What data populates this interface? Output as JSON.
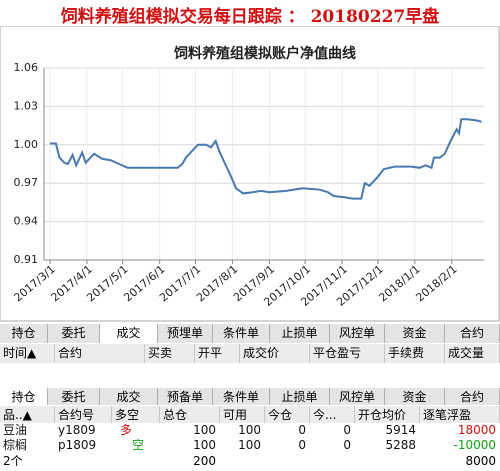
{
  "page_title": "饲料养殖组模拟交易每日跟踪 ： 20180227早盘",
  "chart_data": {
    "type": "line",
    "title": "饲料养殖组模拟账户净值曲线",
    "x": [
      "2017/3/1",
      "2017/3/6",
      "2017/3/9",
      "2017/3/13",
      "2017/3/16",
      "2017/3/20",
      "2017/3/23",
      "2017/3/28",
      "2017/3/31",
      "2017/4/7",
      "2017/4/14",
      "2017/4/21",
      "2017/4/28",
      "2017/5/5",
      "2017/5/19",
      "2017/6/2",
      "2017/6/16",
      "2017/6/20",
      "2017/6/23",
      "2017/6/28",
      "2017/7/3",
      "2017/7/10",
      "2017/7/14",
      "2017/7/18",
      "2017/7/21",
      "2017/7/26",
      "2017/7/31",
      "2017/8/4",
      "2017/8/10",
      "2017/8/18",
      "2017/8/25",
      "2017/9/1",
      "2017/9/15",
      "2017/9/29",
      "2017/10/13",
      "2017/10/20",
      "2017/10/25",
      "2017/11/3",
      "2017/11/10",
      "2017/11/17",
      "2017/11/20",
      "2017/11/24",
      "2017/11/30",
      "2017/12/6",
      "2017/12/15",
      "2017/12/29",
      "2018/1/5",
      "2018/1/10",
      "2018/1/15",
      "2018/1/17",
      "2018/1/22",
      "2018/1/26",
      "2018/1/31",
      "2018/2/5",
      "2018/2/7",
      "2018/2/9",
      "2018/2/14",
      "2018/2/22",
      "2018/2/26"
    ],
    "series": [
      {
        "name": "净值",
        "color": "#4a78b0",
        "values": [
          1.001,
          1.001,
          0.99,
          0.986,
          0.985,
          0.992,
          0.984,
          0.994,
          0.986,
          0.993,
          0.989,
          0.988,
          0.985,
          0.982,
          0.982,
          0.982,
          0.982,
          0.985,
          0.99,
          0.995,
          1.0,
          1.0,
          0.998,
          1.003,
          0.995,
          0.985,
          0.975,
          0.966,
          0.962,
          0.963,
          0.964,
          0.963,
          0.964,
          0.966,
          0.965,
          0.963,
          0.96,
          0.959,
          0.958,
          0.958,
          0.97,
          0.968,
          0.974,
          0.981,
          0.983,
          0.983,
          0.982,
          0.984,
          0.982,
          0.99,
          0.99,
          0.993,
          1.003,
          1.012,
          1.009,
          1.02,
          1.02,
          1.019,
          1.018
        ]
      }
    ],
    "xlim": [
      "2017/2/24",
      "2018/2/28"
    ],
    "xticks": [
      "2017/3/1",
      "2017/4/1",
      "2017/5/1",
      "2017/6/1",
      "2017/7/1",
      "2017/8/1",
      "2017/9/1",
      "2017/10/1",
      "2017/11/1",
      "2017/12/1",
      "2018/1/1",
      "2018/2/1"
    ],
    "ylim": [
      0.91,
      1.06
    ],
    "yticks": [
      0.91,
      0.94,
      0.97,
      {
        "value": 1.0,
        "label": "1.00"
      },
      1.03,
      1.06
    ],
    "grid": true
  },
  "trade_panel": {
    "tabs": [
      "持仓",
      "委托",
      "成交",
      "预埋单",
      "条件单",
      "止损单",
      "风控单",
      "资金",
      "合约"
    ],
    "headers": [
      "时间▲",
      "合约",
      "买卖",
      "开平",
      "成交价",
      "平仓盈亏",
      "手续费",
      "成交量"
    ]
  },
  "position_panel": {
    "tabs": [
      "持仓",
      "委托",
      "成交",
      "预备单",
      "条件单",
      "止损单",
      "风控单",
      "资金",
      "合约"
    ],
    "headers": [
      "品..▲",
      "合约号",
      "多空",
      "总仓",
      "可用",
      "今仓",
      "今...",
      "开仓均价",
      "逐笔浮盈"
    ],
    "rows": [
      [
        "豆油",
        "y1809",
        "多",
        "100",
        "100",
        "0",
        "0",
        "5914",
        "18000"
      ],
      [
        "棕榈",
        "p1809",
        "空",
        "100",
        "100",
        "0",
        "0",
        "5288",
        "-10000"
      ]
    ],
    "total": [
      "2个",
      "200",
      "8000"
    ]
  }
}
